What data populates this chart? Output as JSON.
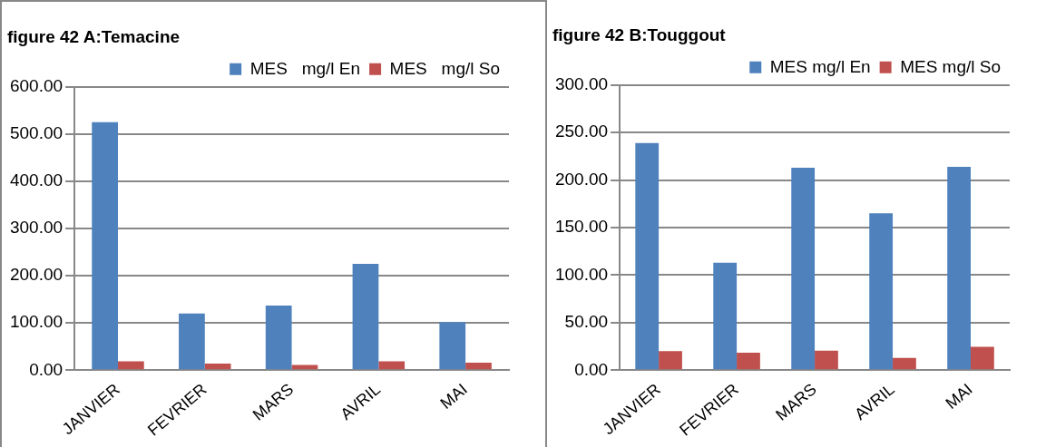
{
  "chart_data": [
    {
      "type": "bar",
      "title": "figure 42 A:Temacine",
      "categories": [
        "JANVIER",
        "FEVRIER",
        "MARS",
        "AVRIL",
        "MAI"
      ],
      "series": [
        {
          "name": "MES   mg/l En",
          "color": "#4f81bd",
          "values": [
            525,
            120,
            137,
            225,
            102
          ]
        },
        {
          "name": "MES   mg/l So",
          "color": "#c0504d",
          "values": [
            19,
            14,
            11,
            19,
            16
          ]
        }
      ],
      "ylim": [
        0,
        600
      ],
      "yticks": [
        {
          "value": 0,
          "label": "0.00"
        },
        {
          "value": 100,
          "label": "100.00"
        },
        {
          "value": 200,
          "label": "200.00"
        },
        {
          "value": 300,
          "label": "300.00"
        },
        {
          "value": 400,
          "label": "400.00"
        },
        {
          "value": 500,
          "label": "500.00"
        },
        {
          "value": 600,
          "label": "600.00"
        }
      ],
      "grid": "y",
      "legend": "top right"
    },
    {
      "type": "bar",
      "title": "figure 42 B:Touggout",
      "categories": [
        "JANVIER",
        "FEVRIER",
        "MARS",
        "AVRIL",
        "MAI"
      ],
      "series": [
        {
          "name": "MES mg/l En",
          "color": "#4f81bd",
          "values": [
            239,
            113,
            213,
            165,
            214
          ]
        },
        {
          "name": "MES mg/l So",
          "color": "#c0504d",
          "values": [
            20,
            18.5,
            20.5,
            13,
            24.5
          ]
        }
      ],
      "ylim": [
        0,
        300
      ],
      "yticks": [
        {
          "value": 0,
          "label": "0.00"
        },
        {
          "value": 50,
          "label": "50.00"
        },
        {
          "value": 100,
          "label": "100.00"
        },
        {
          "value": 150,
          "label": "150.00"
        },
        {
          "value": 200,
          "label": "200.00"
        },
        {
          "value": 250,
          "label": "250.00"
        },
        {
          "value": 300,
          "label": "300.00"
        }
      ],
      "grid": "y",
      "legend": "top right"
    }
  ]
}
